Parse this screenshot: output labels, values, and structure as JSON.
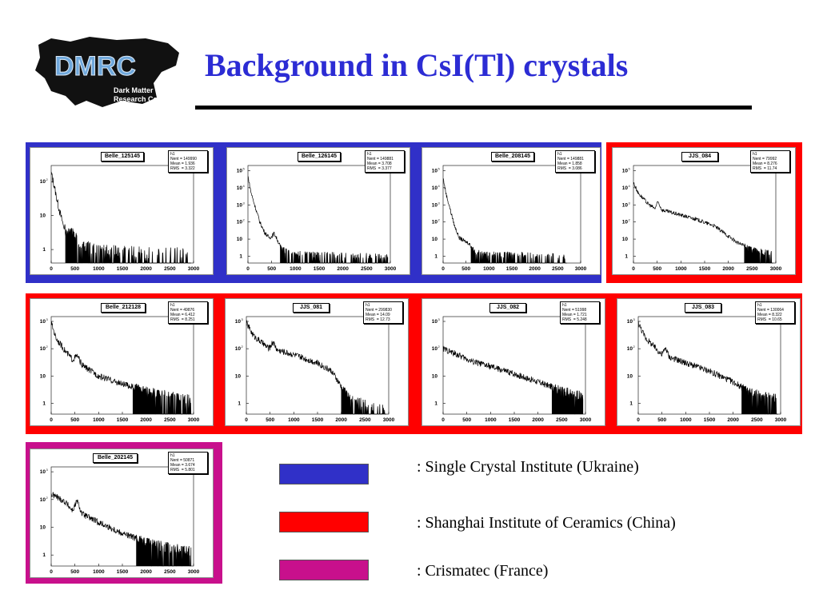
{
  "slide": {
    "title": "Background in CsI(Tl) crystals",
    "logo": {
      "mark": "DMRC",
      "line1": "Dark Matter",
      "line2": "Research Center"
    }
  },
  "colors": {
    "ukraine": "#3030c8",
    "china": "#ff0000",
    "france": "#c8108c",
    "title": "#2c2cd4"
  },
  "legend": [
    {
      "color": "#3030c8",
      "label": ": Single Crystal Institute (Ukraine)"
    },
    {
      "color": "#ff0000",
      "label": ": Shanghai Institute of Ceramics (China)"
    },
    {
      "color": "#c8108c",
      "label": ": Crismatec (France)"
    }
  ],
  "chart_data": [
    {
      "type": "histogram",
      "title": "Belle_125145",
      "stats": {
        "name": "h1",
        "nent": "149990",
        "mean": "1.936",
        "rms": "3.322"
      },
      "xlim": [
        0,
        3000
      ],
      "xticks": [
        0,
        500,
        1000,
        1500,
        2000,
        2500,
        3000
      ],
      "ylog": true,
      "ylim": [
        0.4,
        300
      ],
      "yticks": [
        {
          "v": 1,
          "l": "1"
        },
        {
          "v": 10,
          "l": "10"
        },
        {
          "v": 100,
          "l": "10"
        }
      ],
      "profile": [
        [
          0,
          180
        ],
        [
          60,
          80
        ],
        [
          120,
          30
        ],
        [
          200,
          10
        ],
        [
          260,
          5
        ],
        [
          350,
          3
        ],
        [
          420,
          3.6
        ],
        [
          500,
          2.5
        ],
        [
          600,
          1.8
        ],
        [
          700,
          1.4
        ],
        [
          1000,
          1
        ],
        [
          3000,
          0.8
        ]
      ],
      "cutoff": 2950,
      "bump": null,
      "fade": null
    },
    {
      "type": "histogram",
      "title": "Belle_126145",
      "stats": {
        "name": "h1",
        "nent": "149881",
        "mean": "3.708",
        "rms": "3.377"
      },
      "xlim": [
        0,
        3000
      ],
      "xticks": [
        0,
        500,
        1000,
        1500,
        2000,
        2500,
        3000
      ],
      "ylog": true,
      "ylim": [
        0.4,
        200000
      ],
      "yticks": [
        {
          "v": 1,
          "l": "1"
        },
        {
          "v": 10,
          "l": "10"
        },
        {
          "v": 100,
          "l": "10"
        },
        {
          "v": 1000,
          "l": "10"
        },
        {
          "v": 10000,
          "l": "10"
        },
        {
          "v": 100000,
          "l": "10"
        }
      ],
      "profile": [
        [
          0,
          50000
        ],
        [
          60,
          6000
        ],
        [
          150,
          800
        ],
        [
          250,
          100
        ],
        [
          350,
          25
        ],
        [
          450,
          12
        ],
        [
          500,
          14
        ],
        [
          550,
          22
        ],
        [
          600,
          12
        ],
        [
          700,
          3
        ],
        [
          900,
          1.5
        ],
        [
          3000,
          1
        ]
      ],
      "cutoff": 2950,
      "bump": null,
      "fade": null
    },
    {
      "type": "histogram",
      "title": "Belle_208145",
      "stats": {
        "name": "h1",
        "nent": "149881",
        "mean": "1.858",
        "rms": "3.086"
      },
      "xlim": [
        0,
        3000
      ],
      "xticks": [
        0,
        500,
        1000,
        1500,
        2000,
        2500,
        3000
      ],
      "ylog": true,
      "ylim": [
        0.4,
        200000
      ],
      "yticks": [
        {
          "v": 1,
          "l": "1"
        },
        {
          "v": 10,
          "l": "10"
        },
        {
          "v": 100,
          "l": "10"
        },
        {
          "v": 1000,
          "l": "10"
        },
        {
          "v": 10000,
          "l": "10"
        },
        {
          "v": 100000,
          "l": "10"
        }
      ],
      "profile": [
        [
          0,
          40000
        ],
        [
          60,
          5000
        ],
        [
          150,
          600
        ],
        [
          250,
          60
        ],
        [
          350,
          12
        ],
        [
          450,
          8
        ],
        [
          550,
          6
        ],
        [
          650,
          3
        ],
        [
          800,
          1.5
        ],
        [
          3000,
          1
        ]
      ],
      "cutoff": 2700,
      "bump": null,
      "fade": null
    },
    {
      "type": "histogram",
      "title": "JJS_084",
      "stats": {
        "name": "h1",
        "nent": "79992",
        "mean": "8.276",
        "rms": "11.74"
      },
      "xlim": [
        0,
        3000
      ],
      "xticks": [
        0,
        500,
        1000,
        1500,
        2000,
        2500,
        3000
      ],
      "ylog": true,
      "ylim": [
        0.4,
        200000
      ],
      "yticks": [
        {
          "v": 1,
          "l": "1"
        },
        {
          "v": 10,
          "l": "10"
        },
        {
          "v": 100,
          "l": "10"
        },
        {
          "v": 1000,
          "l": "10"
        },
        {
          "v": 10000,
          "l": "10"
        },
        {
          "v": 100000,
          "l": "10"
        }
      ],
      "profile": [
        [
          0,
          20000
        ],
        [
          100,
          5000
        ],
        [
          300,
          1200
        ],
        [
          450,
          600
        ],
        [
          520,
          1500
        ],
        [
          600,
          500
        ],
        [
          900,
          300
        ],
        [
          1300,
          150
        ],
        [
          1700,
          60
        ],
        [
          2000,
          15
        ],
        [
          2200,
          6
        ],
        [
          2500,
          2.5
        ],
        [
          2950,
          1.5
        ]
      ],
      "cutoff": 2950,
      "bump": null,
      "fade": null
    },
    {
      "type": "histogram",
      "title": "Belle_212128",
      "stats": {
        "name": "h1",
        "nent": "49876",
        "mean": "6.412",
        "rms": "8.251"
      },
      "xlim": [
        0,
        3000
      ],
      "xticks": [
        0,
        500,
        1000,
        1500,
        2000,
        2500,
        3000
      ],
      "ylog": true,
      "ylim": [
        0.4,
        1500
      ],
      "yticks": [
        {
          "v": 1,
          "l": "1"
        },
        {
          "v": 10,
          "l": "10"
        },
        {
          "v": 100,
          "l": "10"
        },
        {
          "v": 1000,
          "l": "10"
        }
      ],
      "profile": [
        [
          0,
          900
        ],
        [
          100,
          250
        ],
        [
          300,
          80
        ],
        [
          450,
          40
        ],
        [
          550,
          55
        ],
        [
          650,
          25
        ],
        [
          1000,
          10
        ],
        [
          1500,
          5
        ],
        [
          2000,
          3
        ],
        [
          2500,
          2
        ],
        [
          2950,
          1.5
        ]
      ],
      "cutoff": 2950,
      "bump": null,
      "fade": null
    },
    {
      "type": "histogram",
      "title": "JJS_081",
      "stats": {
        "name": "h1",
        "nent": "299830",
        "mean": "14.09",
        "rms": "12.73"
      },
      "xlim": [
        0,
        3000
      ],
      "xticks": [
        0,
        500,
        1000,
        1500,
        2000,
        2500,
        3000
      ],
      "ylog": true,
      "ylim": [
        0.4,
        1500
      ],
      "yticks": [
        {
          "v": 1,
          "l": "1"
        },
        {
          "v": 10,
          "l": "10"
        },
        {
          "v": 100,
          "l": "10"
        },
        {
          "v": 1000,
          "l": "10"
        }
      ],
      "profile": [
        [
          0,
          900
        ],
        [
          150,
          300
        ],
        [
          400,
          130
        ],
        [
          480,
          100
        ],
        [
          560,
          180
        ],
        [
          650,
          90
        ],
        [
          1000,
          60
        ],
        [
          1500,
          30
        ],
        [
          1800,
          15
        ],
        [
          2000,
          4
        ],
        [
          2200,
          1.5
        ],
        [
          2500,
          1
        ],
        [
          2950,
          0.6
        ]
      ],
      "cutoff": 2950,
      "bump": null,
      "fade": null
    },
    {
      "type": "histogram",
      "title": "JJS_082",
      "stats": {
        "name": "h1",
        "nent": "51998",
        "mean": "1.721",
        "rms": "5.248"
      },
      "xlim": [
        0,
        3000
      ],
      "xticks": [
        0,
        500,
        1000,
        1500,
        2000,
        2500,
        3000
      ],
      "ylog": true,
      "ylim": [
        0.4,
        1500
      ],
      "yticks": [
        {
          "v": 1,
          "l": "1"
        },
        {
          "v": 10,
          "l": "10"
        },
        {
          "v": 100,
          "l": "10"
        },
        {
          "v": 1000,
          "l": "10"
        }
      ],
      "profile": [
        [
          0,
          100
        ],
        [
          300,
          60
        ],
        [
          600,
          35
        ],
        [
          1000,
          22
        ],
        [
          1500,
          12
        ],
        [
          2000,
          6
        ],
        [
          2500,
          3
        ],
        [
          2950,
          2
        ]
      ],
      "cutoff": 2950,
      "bump": null,
      "fade": null
    },
    {
      "type": "histogram",
      "title": "JJS_083",
      "stats": {
        "name": "h1",
        "nent": "130064",
        "mean": "8.322",
        "rms": "10.65"
      },
      "xlim": [
        0,
        3000
      ],
      "xticks": [
        0,
        500,
        1000,
        1500,
        2000,
        2500,
        3000
      ],
      "ylog": true,
      "ylim": [
        0.4,
        1500
      ],
      "yticks": [
        {
          "v": 1,
          "l": "1"
        },
        {
          "v": 10,
          "l": "10"
        },
        {
          "v": 100,
          "l": "10"
        },
        {
          "v": 1000,
          "l": "10"
        }
      ],
      "profile": [
        [
          0,
          900
        ],
        [
          150,
          250
        ],
        [
          400,
          90
        ],
        [
          500,
          60
        ],
        [
          580,
          110
        ],
        [
          650,
          50
        ],
        [
          1000,
          30
        ],
        [
          1500,
          15
        ],
        [
          2000,
          6
        ],
        [
          2300,
          3
        ],
        [
          2600,
          2
        ],
        [
          2950,
          1.5
        ]
      ],
      "cutoff": 2950,
      "bump": null,
      "fade": null
    },
    {
      "type": "histogram",
      "title": "Belle_202145",
      "stats": {
        "name": "h1",
        "nent": "50871",
        "mean": "3.674",
        "rms": "5.801"
      },
      "xlim": [
        0,
        3000
      ],
      "xticks": [
        0,
        500,
        1000,
        1500,
        2000,
        2500,
        3000
      ],
      "ylog": true,
      "ylim": [
        0.4,
        1500
      ],
      "yticks": [
        {
          "v": 1,
          "l": "1"
        },
        {
          "v": 10,
          "l": "10"
        },
        {
          "v": 100,
          "l": "10"
        },
        {
          "v": 1000,
          "l": "10"
        }
      ],
      "profile": [
        [
          0,
          150
        ],
        [
          100,
          130
        ],
        [
          300,
          80
        ],
        [
          450,
          40
        ],
        [
          550,
          90
        ],
        [
          650,
          30
        ],
        [
          1000,
          15
        ],
        [
          1500,
          6
        ],
        [
          2000,
          3
        ],
        [
          2500,
          2
        ],
        [
          2950,
          1.5
        ]
      ],
      "cutoff": 2950,
      "bump": null,
      "fade": null
    }
  ]
}
